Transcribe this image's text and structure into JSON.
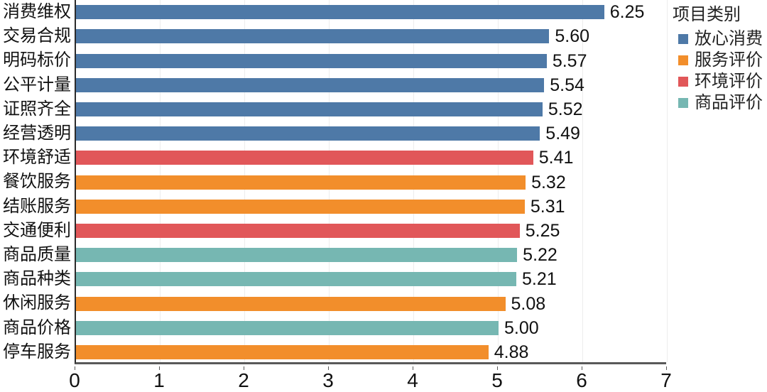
{
  "chart_data": {
    "type": "bar",
    "orientation": "horizontal",
    "categories": [
      "消费维权",
      "交易合规",
      "明码标价",
      "公平计量",
      "证照齐全",
      "经营透明",
      "环境舒适",
      "餐饮服务",
      "结账服务",
      "交通便利",
      "商品质量",
      "商品种类",
      "休闲服务",
      "商品价格",
      "停车服务"
    ],
    "values": [
      6.25,
      5.6,
      5.57,
      5.54,
      5.52,
      5.49,
      5.41,
      5.32,
      5.31,
      5.25,
      5.22,
      5.21,
      5.08,
      5.0,
      4.88
    ],
    "value_labels": [
      "6.25",
      "5.60",
      "5.57",
      "5.54",
      "5.52",
      "5.49",
      "5.41",
      "5.32",
      "5.31",
      "5.25",
      "5.22",
      "5.21",
      "5.08",
      "5.00",
      "4.88"
    ],
    "groups": [
      "放心消费",
      "放心消费",
      "放心消费",
      "放心消费",
      "放心消费",
      "放心消费",
      "环境评价",
      "服务评价",
      "服务评价",
      "环境评价",
      "商品评价",
      "商品评价",
      "服务评价",
      "商品评价",
      "服务评价"
    ],
    "legend_title": "项目类别",
    "legend": [
      {
        "label": "放心消费",
        "color": "#4E79A7"
      },
      {
        "label": "服务评价",
        "color": "#F28E2B"
      },
      {
        "label": "环境评价",
        "color": "#E15759"
      },
      {
        "label": "商品评价",
        "color": "#76B7B2"
      }
    ],
    "xlabel": "",
    "ylabel": "",
    "xlim": [
      0,
      7
    ],
    "x_ticks": [
      "0",
      "1",
      "2",
      "3",
      "4",
      "5",
      "6",
      "7"
    ],
    "grid": true,
    "gridline_color": "#ededed",
    "legend_position": "top-right"
  }
}
